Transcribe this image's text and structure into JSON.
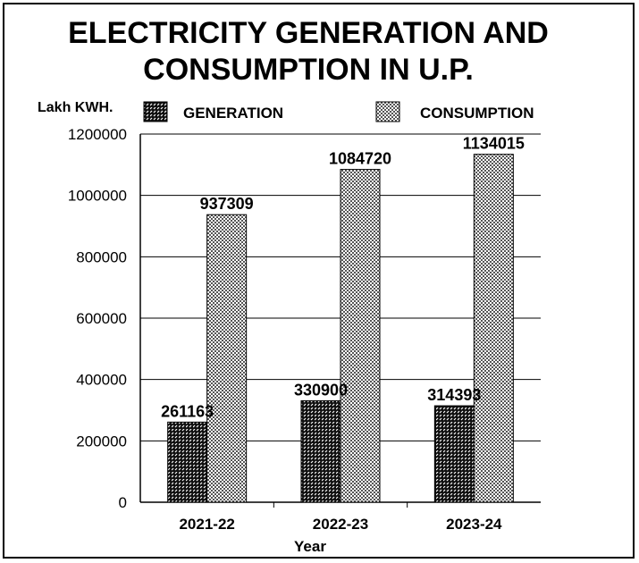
{
  "chart_data": {
    "type": "bar",
    "title": "ELECTRICITY GENERATION AND CONSUMPTION IN U.P.",
    "title_lines": [
      "ELECTRICITY GENERATION AND",
      "CONSUMPTION IN U.P."
    ],
    "ylabel": "Lakh KWH.",
    "xlabel": "Year",
    "categories": [
      "2021-22",
      "2022-23",
      "2023-24"
    ],
    "series": [
      {
        "name": "GENERATION",
        "values": [
          261163,
          330900,
          314393
        ],
        "pattern": "dark-hatched"
      },
      {
        "name": "CONSUMPTION",
        "values": [
          937309,
          1084720,
          1134015
        ],
        "pattern": "checkered"
      }
    ],
    "ylim": [
      0,
      1200000
    ],
    "yticks": [
      0,
      200000,
      400000,
      600000,
      800000,
      1000000,
      1200000
    ],
    "grid": true,
    "legend_position": "top",
    "colors": {
      "bar_dark": "#1a1a1a",
      "bar_light": "#bdbdbd",
      "grid": "#000000"
    }
  }
}
